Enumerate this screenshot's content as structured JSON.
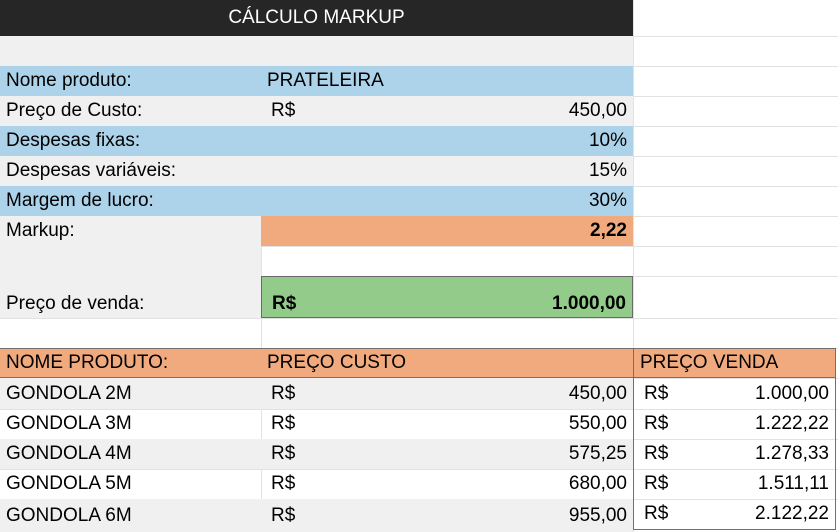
{
  "title": "CÁLCULO MARKUP",
  "calc": {
    "nome_label": "Nome produto:",
    "nome_value": "PRATELEIRA",
    "custo_label": "Preço de Custo:",
    "custo_currency": "R$",
    "custo_value": "450,00",
    "fixas_label": "Despesas fixas:",
    "fixas_value": "10%",
    "variaveis_label": "Despesas variáveis:",
    "variaveis_value": "15%",
    "margem_label": "Margem de lucro:",
    "margem_value": "30%",
    "markup_label": "Markup:",
    "markup_value": "2,22",
    "venda_label": "Preço de venda:",
    "venda_currency": "R$",
    "venda_value": "1.000,00"
  },
  "table": {
    "headers": [
      "NOME PRODUTO:",
      "PREÇO CUSTO",
      "PREÇO VENDA"
    ],
    "rows": [
      {
        "name": "GONDOLA 2M",
        "cost_cur": "R$",
        "cost": "450,00",
        "price_cur": "R$",
        "price": "1.000,00"
      },
      {
        "name": "GONDOLA 3M",
        "cost_cur": "R$",
        "cost": "550,00",
        "price_cur": "R$",
        "price": "1.222,22"
      },
      {
        "name": "GONDOLA 4M",
        "cost_cur": "R$",
        "cost": "575,25",
        "price_cur": "R$",
        "price": "1.278,33"
      },
      {
        "name": "GONDOLA 5M",
        "cost_cur": "R$",
        "cost": "680,00",
        "price_cur": "R$",
        "price": "1.511,11"
      },
      {
        "name": "GONDOLA 6M",
        "cost_cur": "R$",
        "cost": "955,00",
        "price_cur": "R$",
        "price": "2.122,22"
      }
    ]
  }
}
